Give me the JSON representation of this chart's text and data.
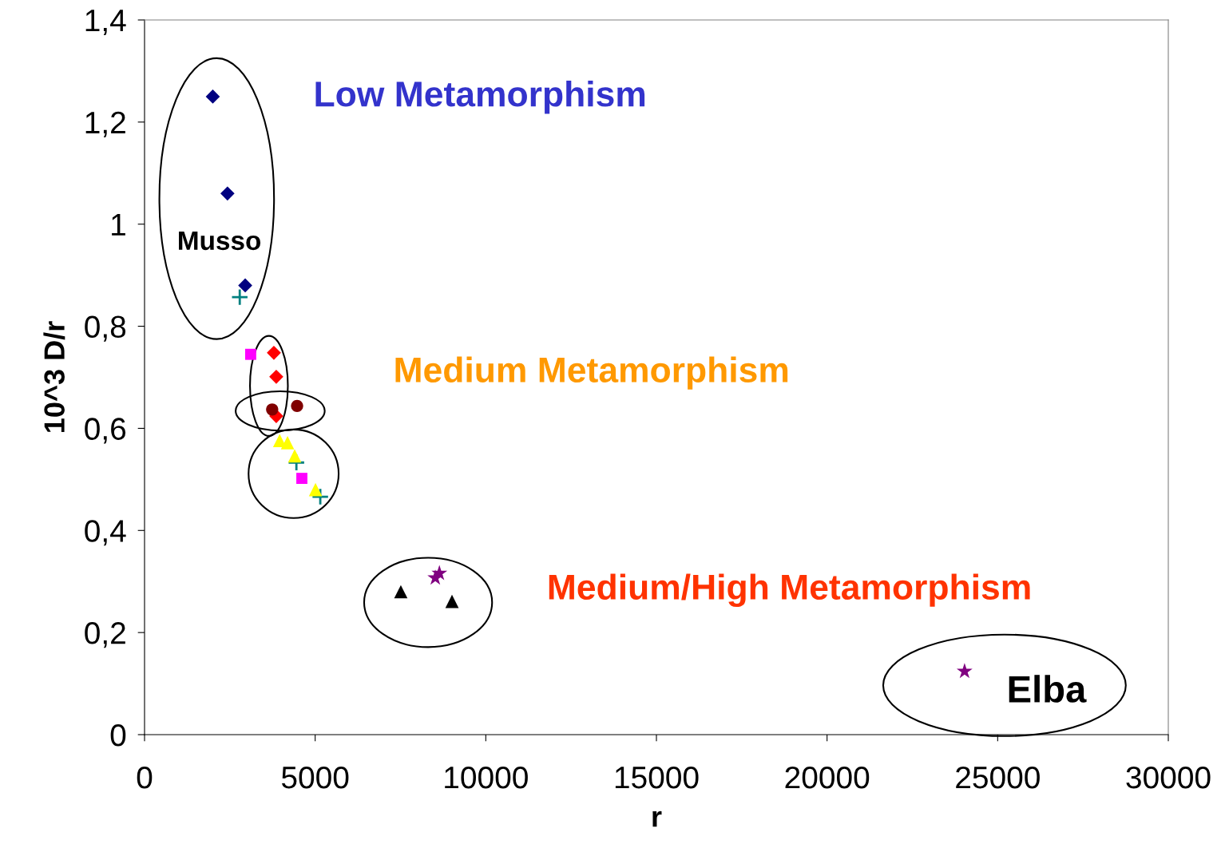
{
  "chart_data": {
    "type": "scatter",
    "xlabel": "r",
    "ylabel": "10^3 D/r",
    "xlim": [
      0,
      30000
    ],
    "xticks": [
      0,
      5000,
      10000,
      15000,
      20000,
      25000,
      30000
    ],
    "ylim": [
      0,
      1.4
    ],
    "yticks": [
      0,
      {
        "value": 0.2,
        "label": "0,2"
      },
      {
        "value": 0.4,
        "label": "0,4"
      },
      {
        "value": 0.6,
        "label": "0,6"
      },
      {
        "value": 0.8,
        "label": "0,8"
      },
      1,
      {
        "value": 1.2,
        "label": "1,2"
      },
      {
        "value": 1.4,
        "label": "1,4"
      }
    ],
    "grid": false,
    "legend": false,
    "series": [
      {
        "color": "#000080",
        "marker": "diamond",
        "x": [
          2000,
          2430,
          2950
        ],
        "values": [
          1.25,
          1.06,
          0.88
        ]
      },
      {
        "color": "#008080",
        "marker": "cross",
        "x": [
          2790,
          4450,
          5150
        ],
        "values": [
          0.857,
          0.533,
          0.466
        ]
      },
      {
        "color": "#ff00ff",
        "marker": "square",
        "x": [
          3110,
          4610
        ],
        "values": [
          0.745,
          0.502
        ]
      },
      {
        "color": "#ff0000",
        "marker": "diamond",
        "x": [
          3790,
          3860,
          3860
        ],
        "values": [
          0.748,
          0.701,
          0.624
        ]
      },
      {
        "color": "#800000",
        "marker": "circle",
        "x": [
          3740,
          4470
        ],
        "values": [
          0.637,
          0.644
        ]
      },
      {
        "color": "#ffff00",
        "marker": "triangle",
        "x": [
          3960,
          4190,
          4400,
          5010
        ],
        "values": [
          0.576,
          0.572,
          0.546,
          0.48
        ]
      },
      {
        "color": "#000000",
        "marker": "triangle",
        "x": [
          7510,
          9010
        ],
        "values": [
          0.28,
          0.261
        ]
      },
      {
        "color": "#800080",
        "marker": "star",
        "x": [
          8520,
          8640,
          24030
        ],
        "values": [
          0.307,
          0.316,
          0.124
        ]
      }
    ],
    "annotations": [
      "Low Metamorphism",
      "Medium Metamorphism",
      "Medium/High Metamorphism",
      "Musso",
      "Elba"
    ]
  }
}
